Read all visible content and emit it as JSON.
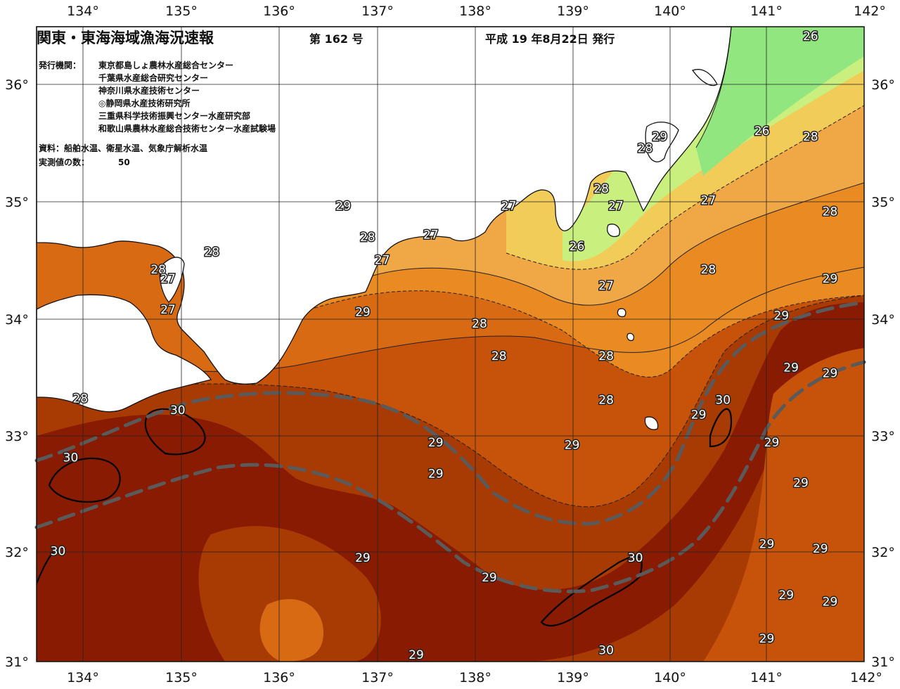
{
  "header": {
    "title": "関東・東海海域漁海況速報",
    "issue": "第 162 号",
    "date": "平成 19 年8月22日 発行"
  },
  "info": {
    "institutions_label": "発行機関：",
    "institutions": [
      "東京都島しょ農林水産総合センター",
      "千葉県水産総合研究センター",
      "神奈川県水産技術センター",
      "◎静岡県水産技術研究所",
      "三重県科学技術振興センター水産研究部",
      "和歌山県農林水産総合技術センター水産試験場"
    ],
    "sources": "資料：船舶水温、衛星水温、気象庁解析水温",
    "count_label": "実測値の数：",
    "count_value": "50"
  },
  "map_data": {
    "lon_labels": [
      "134°",
      "135°",
      "136°",
      "137°",
      "138°",
      "139°",
      "140°",
      "141°",
      "142°"
    ],
    "lat_labels": [
      "36°",
      "35°",
      "34°",
      "33°",
      "32°",
      "31°"
    ],
    "lon_range": [
      133.5,
      142
    ],
    "lat_range": [
      31,
      36.5
    ],
    "colors": {
      "t26": "#92e680",
      "t26_5": "#c9ef7e",
      "t27": "#f2cc58",
      "t27_5": "#f0a846",
      "t28": "#e98a22",
      "t28_5": "#d86a14",
      "t29": "#c65309",
      "t29_5": "#a83a04",
      "t30": "#8a1b03",
      "land": "#ffffff",
      "kuroshio": "#5a5a5a"
    },
    "isotherm_labels": [
      {
        "text": "26",
        "lon": 141.45,
        "lat": 36.42
      },
      {
        "text": "26",
        "lon": 140.95,
        "lat": 35.6
      },
      {
        "text": "28",
        "lon": 141.45,
        "lat": 35.55
      },
      {
        "text": "29",
        "lon": 139.9,
        "lat": 35.55
      },
      {
        "text": "28",
        "lon": 139.75,
        "lat": 35.45
      },
      {
        "text": "28",
        "lon": 139.3,
        "lat": 35.1
      },
      {
        "text": "27",
        "lon": 139.45,
        "lat": 34.95
      },
      {
        "text": "27",
        "lon": 140.4,
        "lat": 35.0
      },
      {
        "text": "28",
        "lon": 141.65,
        "lat": 34.9
      },
      {
        "text": "29",
        "lon": 136.65,
        "lat": 34.95
      },
      {
        "text": "27",
        "lon": 138.35,
        "lat": 34.95
      },
      {
        "text": "27",
        "lon": 137.55,
        "lat": 34.7
      },
      {
        "text": "28",
        "lon": 136.9,
        "lat": 34.68
      },
      {
        "text": "26",
        "lon": 139.05,
        "lat": 34.6
      },
      {
        "text": "27",
        "lon": 137.05,
        "lat": 34.48
      },
      {
        "text": "28",
        "lon": 135.3,
        "lat": 34.55
      },
      {
        "text": "28",
        "lon": 134.75,
        "lat": 34.4
      },
      {
        "text": "27",
        "lon": 134.85,
        "lat": 34.32
      },
      {
        "text": "28",
        "lon": 140.4,
        "lat": 34.4
      },
      {
        "text": "29",
        "lon": 141.65,
        "lat": 34.32
      },
      {
        "text": "27",
        "lon": 139.35,
        "lat": 34.26
      },
      {
        "text": "27",
        "lon": 134.85,
        "lat": 34.05
      },
      {
        "text": "29",
        "lon": 136.85,
        "lat": 34.03
      },
      {
        "text": "29",
        "lon": 141.15,
        "lat": 34.0
      },
      {
        "text": "28",
        "lon": 138.05,
        "lat": 33.93
      },
      {
        "text": "28",
        "lon": 138.25,
        "lat": 33.65
      },
      {
        "text": "28",
        "lon": 139.35,
        "lat": 33.65
      },
      {
        "text": "29",
        "lon": 141.25,
        "lat": 33.55
      },
      {
        "text": "29",
        "lon": 141.65,
        "lat": 33.5
      },
      {
        "text": "28",
        "lon": 133.95,
        "lat": 33.28
      },
      {
        "text": "30",
        "lon": 134.95,
        "lat": 33.18
      },
      {
        "text": "28",
        "lon": 139.35,
        "lat": 33.27
      },
      {
        "text": "30",
        "lon": 140.55,
        "lat": 33.27
      },
      {
        "text": "29",
        "lon": 140.3,
        "lat": 33.14
      },
      {
        "text": "29",
        "lon": 137.6,
        "lat": 32.9
      },
      {
        "text": "29",
        "lon": 139.0,
        "lat": 32.88
      },
      {
        "text": "29",
        "lon": 141.05,
        "lat": 32.9
      },
      {
        "text": "30",
        "lon": 133.85,
        "lat": 32.77
      },
      {
        "text": "29",
        "lon": 137.6,
        "lat": 32.63
      },
      {
        "text": "29",
        "lon": 141.35,
        "lat": 32.55
      },
      {
        "text": "29",
        "lon": 141.0,
        "lat": 32.02
      },
      {
        "text": "29",
        "lon": 141.55,
        "lat": 31.98
      },
      {
        "text": "30",
        "lon": 133.72,
        "lat": 31.96
      },
      {
        "text": "30",
        "lon": 139.65,
        "lat": 31.9
      },
      {
        "text": "29",
        "lon": 136.85,
        "lat": 31.9
      },
      {
        "text": "29",
        "lon": 138.15,
        "lat": 31.73
      },
      {
        "text": "29",
        "lon": 141.2,
        "lat": 31.58
      },
      {
        "text": "29",
        "lon": 141.65,
        "lat": 31.52
      },
      {
        "text": "29",
        "lon": 141.0,
        "lat": 31.2
      },
      {
        "text": "30",
        "lon": 139.35,
        "lat": 31.1
      },
      {
        "text": "29",
        "lon": 137.4,
        "lat": 31.06
      }
    ]
  }
}
